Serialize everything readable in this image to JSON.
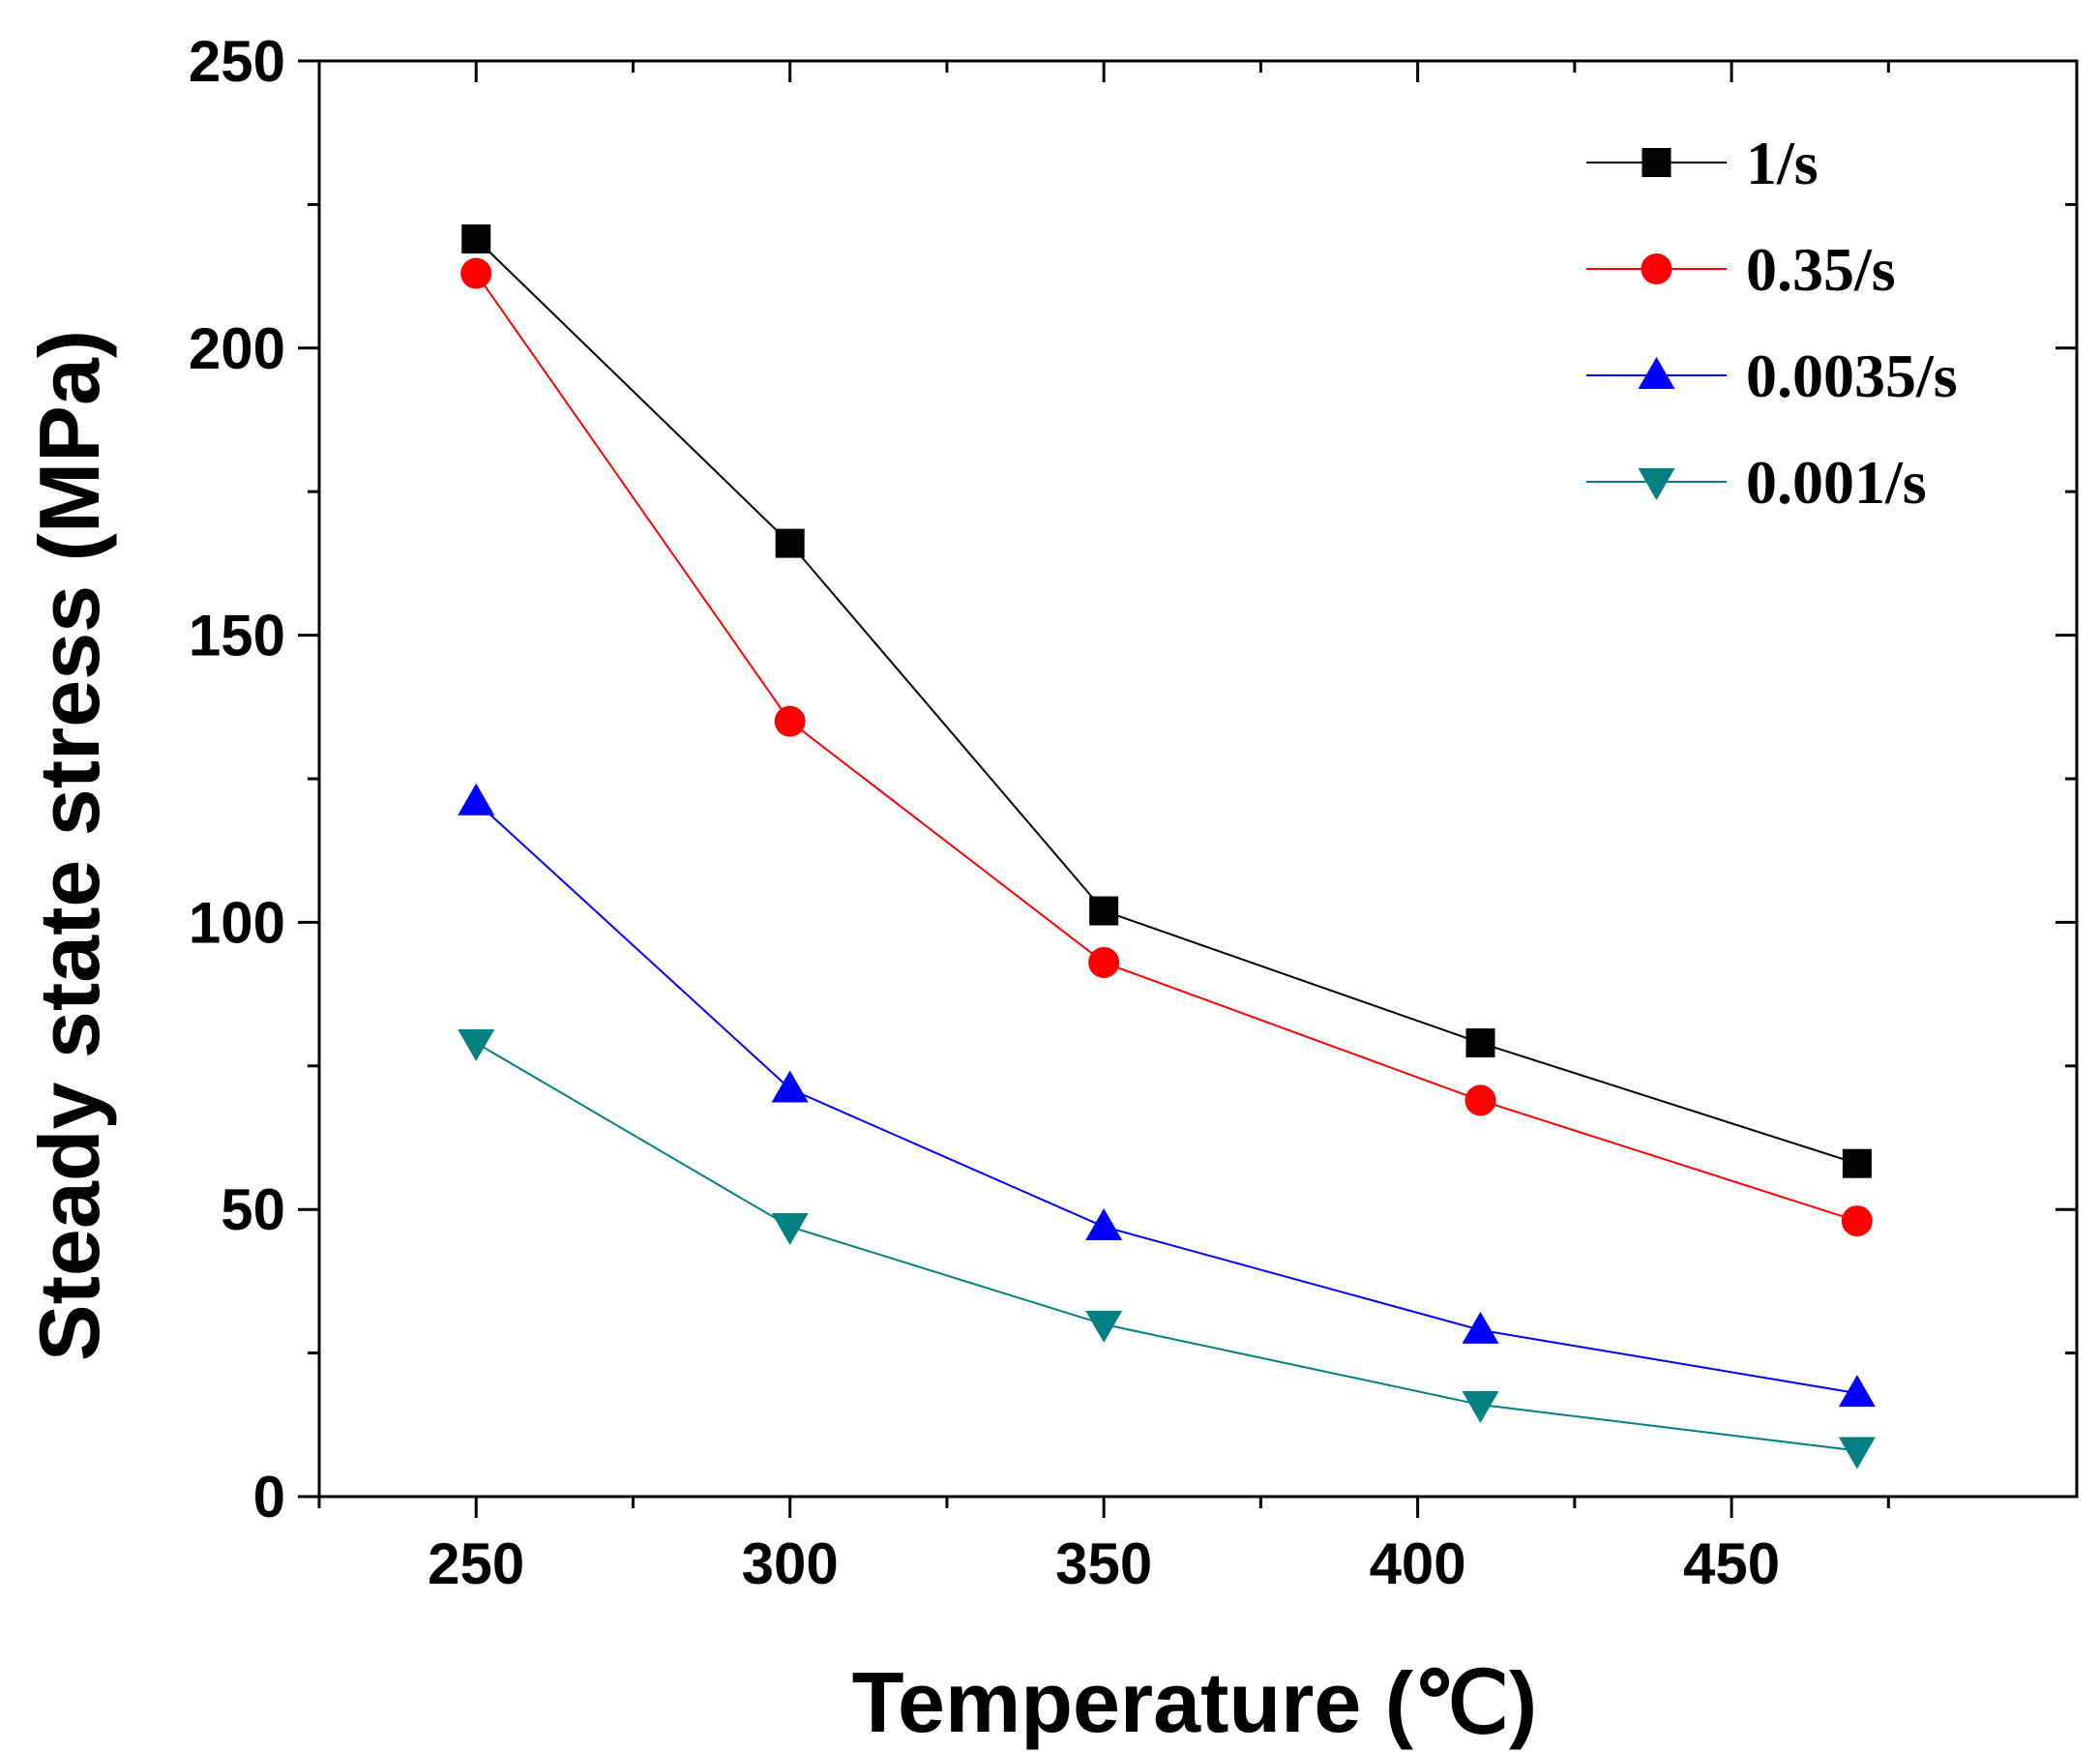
{
  "chart_data": {
    "type": "line",
    "title": "",
    "xlabel": "Temperature (℃)",
    "ylabel": "Steady state stress (MPa)",
    "xlim": [
      225,
      505
    ],
    "ylim": [
      0,
      250
    ],
    "x_ticks": [
      250,
      300,
      350,
      400,
      450
    ],
    "x_tick_labels": [
      "250",
      "300",
      "350",
      "400",
      "450"
    ],
    "y_ticks": [
      0,
      50,
      100,
      150,
      200,
      250
    ],
    "y_tick_labels": [
      "0",
      "50",
      "100",
      "150",
      "200",
      "250"
    ],
    "grid": false,
    "legend_position": "top-right",
    "x": [
      250,
      300,
      350,
      410,
      470
    ],
    "series": [
      {
        "name": "1/s",
        "values": [
          219,
          166,
          102,
          79,
          58
        ],
        "color": "#000000",
        "marker": "square"
      },
      {
        "name": "0.35/s",
        "values": [
          213,
          135,
          93,
          69,
          48
        ],
        "color": "#ff0000",
        "marker": "circle"
      },
      {
        "name": "0.0035/s",
        "values": [
          121,
          71,
          47,
          29,
          18
        ],
        "color": "#0000ff",
        "marker": "triangle-up"
      },
      {
        "name": "0.001/s",
        "values": [
          79,
          47,
          30,
          16,
          8
        ],
        "color": "#008080",
        "marker": "triangle-down"
      }
    ]
  }
}
